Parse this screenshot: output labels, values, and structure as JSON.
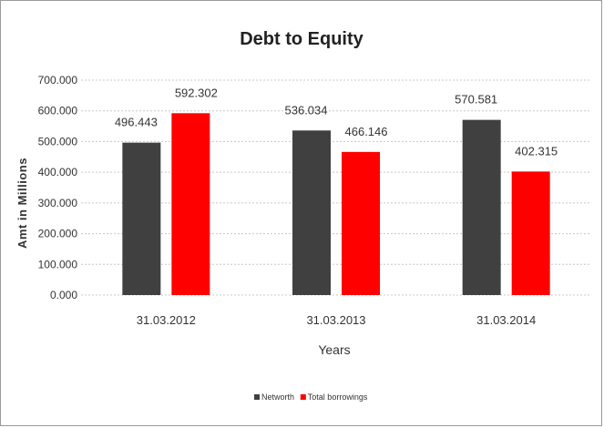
{
  "chart_data": {
    "type": "bar",
    "title": "Debt to Equity",
    "xlabel": "Years",
    "ylabel": "Amt in Millions",
    "categories": [
      "31.03.2012",
      "31.03.2013",
      "31.03.2014"
    ],
    "series": [
      {
        "name": "Networth",
        "values": [
          496.443,
          536.034,
          570.581
        ],
        "color": "#404040",
        "labels": [
          "496.443",
          "536.034",
          "570.581"
        ]
      },
      {
        "name": "Total borrowings",
        "values": [
          592.302,
          466.146,
          402.315
        ],
        "color": "#ff0000",
        "labels": [
          "592.302",
          "466.146",
          "402.315"
        ]
      }
    ],
    "ylim": [
      0,
      700
    ],
    "yticks": [
      0,
      100,
      200,
      300,
      400,
      500,
      600,
      700
    ],
    "ytick_labels": [
      "0.000",
      "100.000",
      "200.000",
      "300.000",
      "400.000",
      "500.000",
      "600.000",
      "700.000"
    ],
    "grid": true,
    "legend_position": "bottom"
  }
}
